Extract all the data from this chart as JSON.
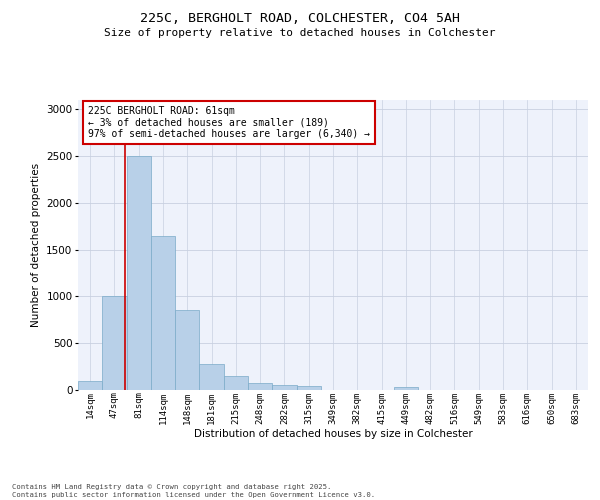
{
  "title": "225C, BERGHOLT ROAD, COLCHESTER, CO4 5AH",
  "subtitle": "Size of property relative to detached houses in Colchester",
  "xlabel": "Distribution of detached houses by size in Colchester",
  "ylabel": "Number of detached properties",
  "categories": [
    "14sqm",
    "47sqm",
    "81sqm",
    "114sqm",
    "148sqm",
    "181sqm",
    "215sqm",
    "248sqm",
    "282sqm",
    "315sqm",
    "349sqm",
    "382sqm",
    "415sqm",
    "449sqm",
    "482sqm",
    "516sqm",
    "549sqm",
    "583sqm",
    "616sqm",
    "650sqm",
    "683sqm"
  ],
  "values": [
    100,
    1000,
    2500,
    1650,
    850,
    275,
    150,
    75,
    50,
    40,
    0,
    0,
    0,
    35,
    0,
    0,
    0,
    0,
    0,
    0,
    0
  ],
  "bar_color": "#b8d0e8",
  "bar_edge_color": "#7aaac8",
  "grid_color": "#c8d0e0",
  "background_color": "#eef2fb",
  "red_line_x": 1.42,
  "annotation_line1": "225C BERGHOLT ROAD: 61sqm",
  "annotation_line2": "← 3% of detached houses are smaller (189)",
  "annotation_line3": "97% of semi-detached houses are larger (6,340) →",
  "annotation_box_color": "#ffffff",
  "annotation_border_color": "#cc0000",
  "ylim": [
    0,
    3100
  ],
  "yticks": [
    0,
    500,
    1000,
    1500,
    2000,
    2500,
    3000
  ],
  "footer_line1": "Contains HM Land Registry data © Crown copyright and database right 2025.",
  "footer_line2": "Contains public sector information licensed under the Open Government Licence v3.0."
}
